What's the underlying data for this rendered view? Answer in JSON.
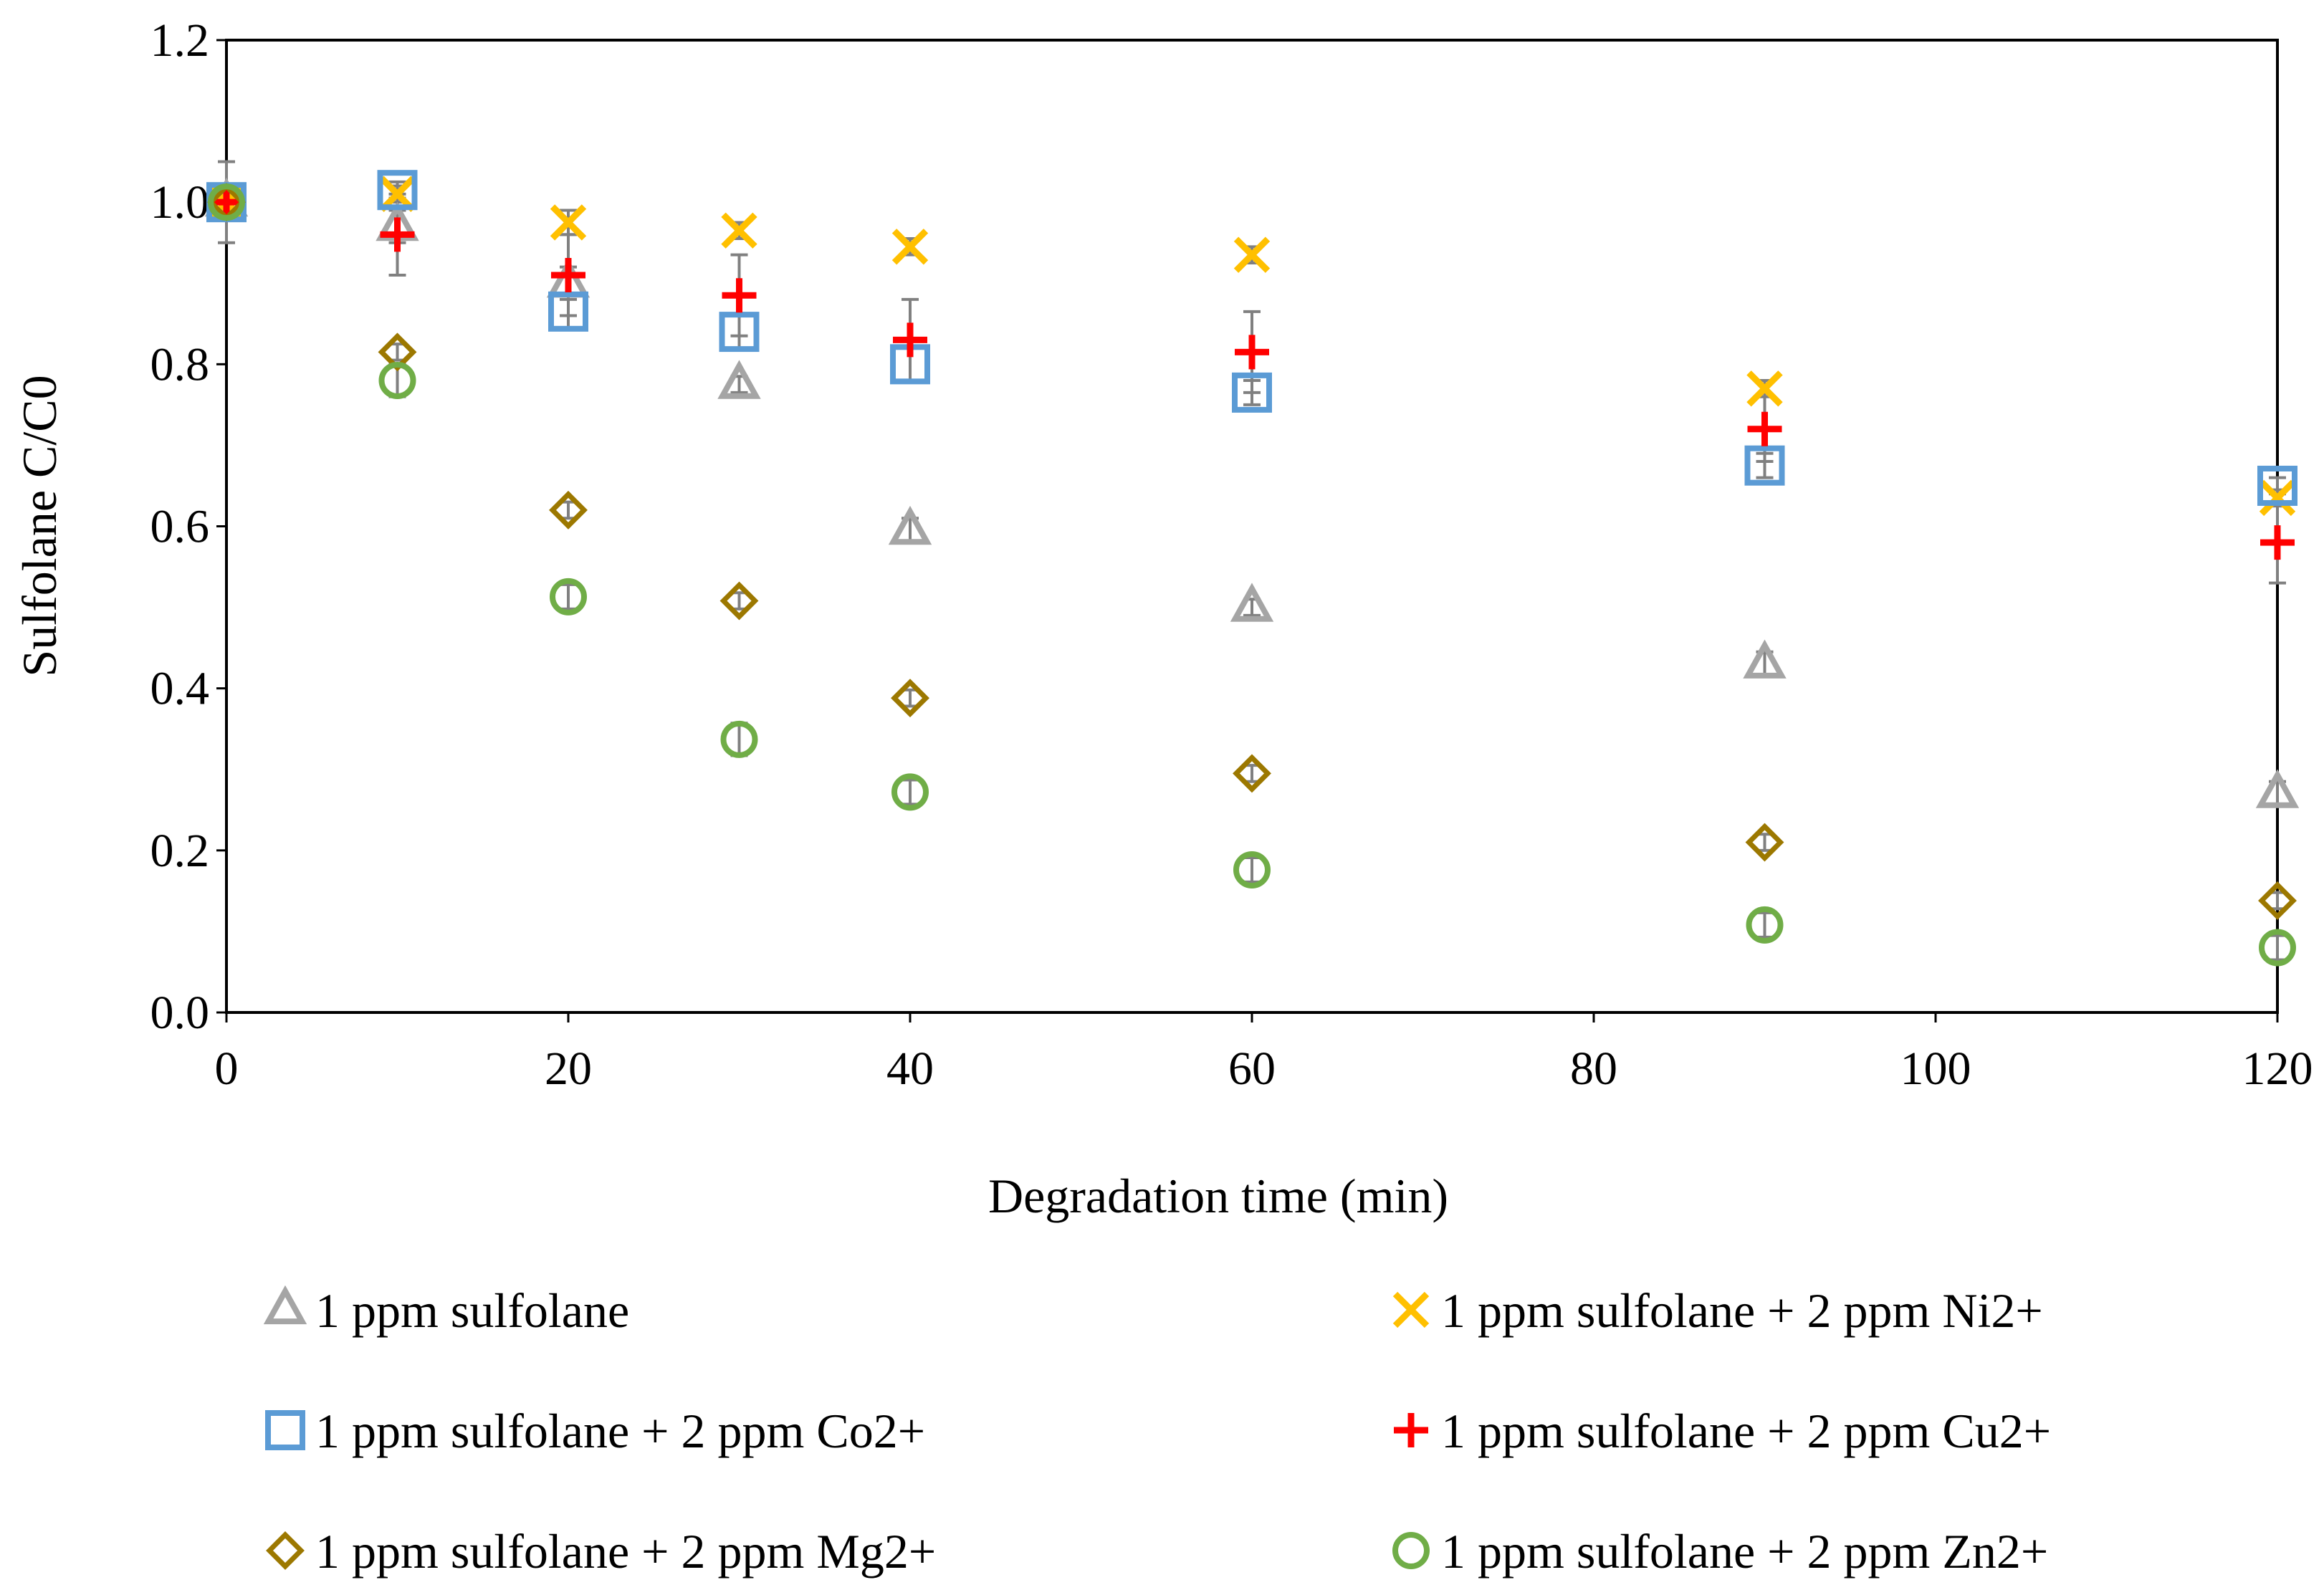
{
  "chart_data": {
    "type": "scatter",
    "title": "",
    "xlabel": "Degradation time (min)",
    "ylabel": "Sulfolane C/C0",
    "xlim": [
      0,
      120
    ],
    "ylim": [
      0,
      1.2
    ],
    "x_ticks": [
      0,
      20,
      40,
      60,
      80,
      100,
      120
    ],
    "y_ticks": [
      0,
      0.2,
      0.4,
      0.6,
      0.8,
      1.0,
      1.2
    ],
    "x_tick_labels": [
      "0",
      "20",
      "40",
      "60",
      "80",
      "100",
      "120"
    ],
    "y_tick_labels": [
      "0.0",
      "0.2",
      "0.4",
      "0.6",
      "0.8",
      "1.0",
      "1.2"
    ],
    "grid": false,
    "legend_position": "bottom",
    "series": [
      {
        "name": "1 ppm sulfolane",
        "marker": "triangle",
        "color": "#a5a5a5",
        "x": [
          0,
          10,
          20,
          30,
          40,
          60,
          90,
          120
        ],
        "y": [
          1.0,
          0.97,
          0.9,
          0.775,
          0.595,
          0.5,
          0.43,
          0.27
        ],
        "err": [
          0.02,
          0.02,
          0.02,
          0.01,
          0.015,
          0.01,
          0.015,
          0.015
        ]
      },
      {
        "name": "1 ppm sulfolane + 2 ppm Ni2+",
        "marker": "x",
        "color": "#ffc000",
        "x": [
          0,
          10,
          20,
          30,
          40,
          60,
          90,
          120
        ],
        "y": [
          1.0,
          1.01,
          0.975,
          0.965,
          0.945,
          0.935,
          0.77,
          0.635
        ],
        "err": [
          0.02,
          0.01,
          0.015,
          0.01,
          0.01,
          0.01,
          0.01,
          0.01
        ]
      },
      {
        "name": "1 ppm sulfolane + 2 ppm Co2+",
        "marker": "square",
        "color": "#5b9bd5",
        "x": [
          0,
          10,
          20,
          30,
          40,
          60,
          90,
          120
        ],
        "y": [
          1.0,
          1.015,
          0.865,
          0.84,
          0.8,
          0.765,
          0.675,
          0.65
        ],
        "err": [
          0.01,
          0.01,
          0.02,
          0.02,
          0.02,
          0.015,
          0.015,
          0.01
        ]
      },
      {
        "name": "1 ppm sulfolane + 2 ppm Cu2+",
        "marker": "plus",
        "color": "#ff0000",
        "x": [
          0,
          10,
          20,
          30,
          40,
          60,
          90,
          120
        ],
        "y": [
          1.0,
          0.96,
          0.91,
          0.885,
          0.83,
          0.815,
          0.72,
          0.58
        ],
        "err": [
          0.05,
          0.05,
          0.05,
          0.05,
          0.05,
          0.05,
          0.04,
          0.05
        ]
      },
      {
        "name": "1 ppm sulfolane + 2 ppm Mg2+",
        "marker": "diamond",
        "color": "#9c7800",
        "x": [
          0,
          10,
          20,
          30,
          40,
          60,
          90,
          120
        ],
        "y": [
          1.0,
          0.815,
          0.62,
          0.508,
          0.388,
          0.295,
          0.21,
          0.138
        ],
        "err": [
          0.01,
          0.01,
          0.01,
          0.01,
          0.01,
          0.01,
          0.01,
          0.01
        ]
      },
      {
        "name": "1 ppm sulfolane + 2 ppm Zn2+",
        "marker": "circle",
        "color": "#70ad47",
        "x": [
          0,
          10,
          20,
          30,
          40,
          60,
          90,
          120
        ],
        "y": [
          1.0,
          0.78,
          0.513,
          0.337,
          0.272,
          0.176,
          0.108,
          0.08
        ],
        "err": [
          0.02,
          0.02,
          0.015,
          0.02,
          0.015,
          0.015,
          0.015,
          0.015
        ]
      }
    ]
  },
  "legend_columns": [
    [
      {
        "series_index": 0
      },
      {
        "series_index": 2
      },
      {
        "series_index": 4
      }
    ],
    [
      {
        "series_index": 1
      },
      {
        "series_index": 3
      },
      {
        "series_index": 5
      }
    ]
  ]
}
